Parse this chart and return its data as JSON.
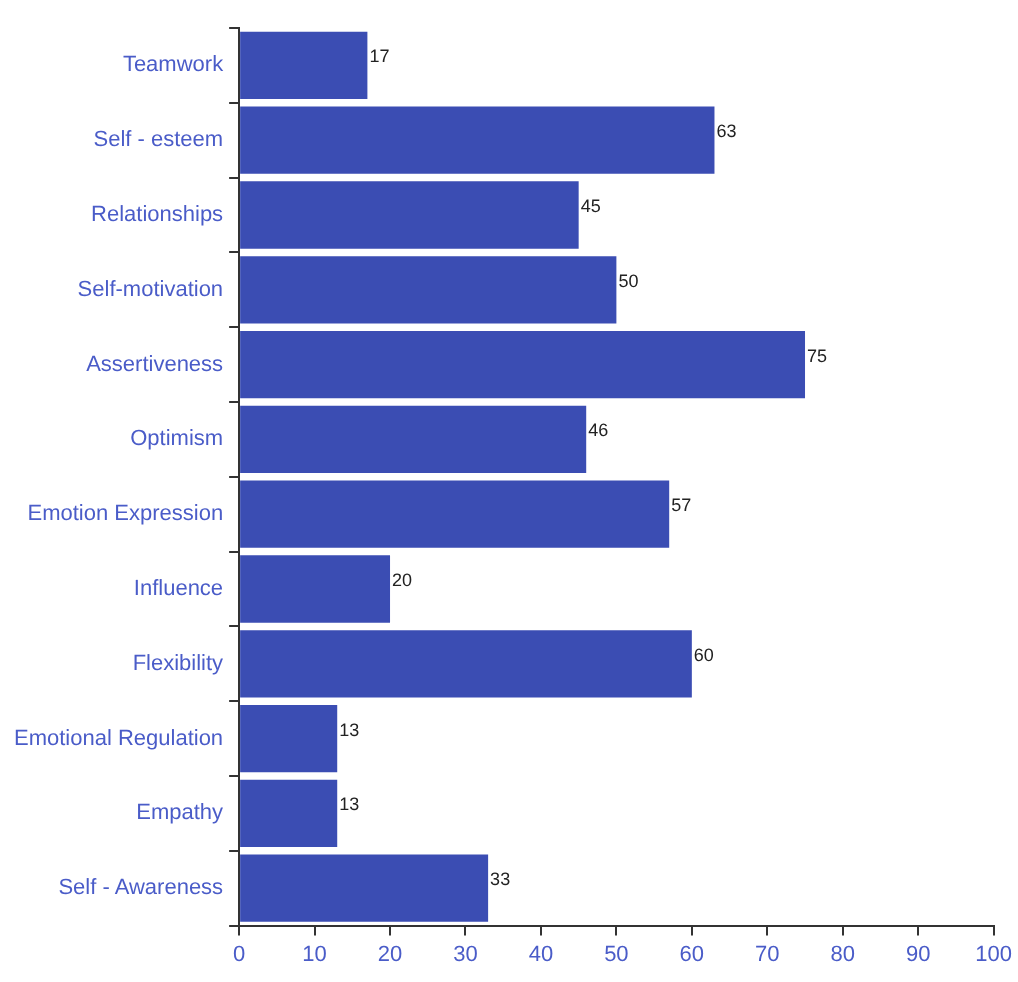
{
  "chart_data": {
    "type": "bar",
    "orientation": "horizontal",
    "categories": [
      "Teamwork",
      "Self - esteem",
      "Relationships",
      "Self-motivation",
      "Assertiveness",
      "Optimism",
      "Emotion Expression",
      "Influence",
      "Flexibility",
      "Emotional Regulation",
      "Empathy",
      "Self - Awareness"
    ],
    "values": [
      17,
      63,
      45,
      50,
      75,
      46,
      57,
      20,
      60,
      13,
      13,
      33
    ],
    "color": "#3b4db3",
    "xlim": [
      0,
      100
    ],
    "xticks": [
      0,
      10,
      20,
      30,
      40,
      50,
      60,
      70,
      80,
      90,
      100
    ],
    "data_labels": true,
    "grid": false,
    "legend": false
  }
}
